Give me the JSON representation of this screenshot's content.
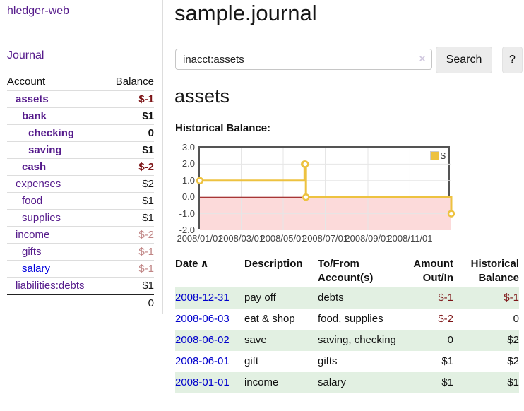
{
  "app": {
    "brand": "hledger-web"
  },
  "sidebar": {
    "journal_link": "Journal",
    "headers": {
      "account": "Account",
      "balance": "Balance"
    },
    "accounts": [
      {
        "name": "assets",
        "balance": "$-1",
        "depth": 1,
        "bold": true,
        "balance_class": "neg-dark",
        "link_class": "purple"
      },
      {
        "name": "bank",
        "balance": "$1",
        "depth": 2,
        "bold": true,
        "balance_class": "",
        "link_class": "purple"
      },
      {
        "name": "checking",
        "balance": "0",
        "depth": 3,
        "bold": true,
        "balance_class": "",
        "link_class": "purple"
      },
      {
        "name": "saving",
        "balance": "$1",
        "depth": 3,
        "bold": true,
        "balance_class": "",
        "link_class": "purple"
      },
      {
        "name": "cash",
        "balance": "$-2",
        "depth": 2,
        "bold": true,
        "balance_class": "neg-dark",
        "link_class": "purple"
      },
      {
        "name": "expenses",
        "balance": "$2",
        "depth": 1,
        "bold": false,
        "balance_class": "",
        "link_class": "purple"
      },
      {
        "name": "food",
        "balance": "$1",
        "depth": 2,
        "bold": false,
        "balance_class": "",
        "link_class": "purple"
      },
      {
        "name": "supplies",
        "balance": "$1",
        "depth": 2,
        "bold": false,
        "balance_class": "",
        "link_class": "purple"
      },
      {
        "name": "income",
        "balance": "$-2",
        "depth": 1,
        "bold": false,
        "balance_class": "neg-light",
        "link_class": "purple"
      },
      {
        "name": "gifts",
        "balance": "$-1",
        "depth": 2,
        "bold": false,
        "balance_class": "neg-light",
        "link_class": "purple"
      },
      {
        "name": "salary",
        "balance": "$-1",
        "depth": 2,
        "bold": false,
        "balance_class": "neg-light",
        "link_class": "blue"
      },
      {
        "name": "liabilities:debts",
        "balance": "$1",
        "depth": 1,
        "bold": false,
        "balance_class": "",
        "link_class": "purple"
      }
    ],
    "total": "0"
  },
  "main": {
    "title": "sample.journal",
    "search": {
      "value": "inacct:assets",
      "clear_icon": "×",
      "button_label": "Search",
      "help_label": "?"
    },
    "account_heading": "assets",
    "chart_heading": "Historical Balance:"
  },
  "chart_data": {
    "type": "line",
    "line_style": "steps",
    "title": "Historical Balance:",
    "series": [
      {
        "name": "$",
        "color": "#edc240",
        "points": [
          [
            "2008-01-01",
            1
          ],
          [
            "2008-06-01",
            2
          ],
          [
            "2008-06-02",
            2
          ],
          [
            "2008-06-03",
            0
          ],
          [
            "2008-12-31",
            -1
          ]
        ]
      }
    ],
    "x_start": "2008-01-01",
    "x_span_days": 365,
    "x_ticks": [
      "2008/01/01",
      "2008/03/01",
      "2008/05/01",
      "2008/07/01",
      "2008/09/01",
      "2008/11/01"
    ],
    "y_ticks": [
      "3.0",
      "2.0",
      "1.0",
      "0.0",
      "-1.0",
      "-2.0"
    ],
    "ylim": [
      -2,
      3
    ],
    "grid": true,
    "legend_position": "top-right",
    "negative_region_color": "#fcdada",
    "zero_line_color": "#8b0000",
    "grid_color": "#e6e6e6"
  },
  "register": {
    "headers": {
      "date": "Date",
      "sort_icon": "∧",
      "description": "Description",
      "accounts": "To/From Account(s)",
      "amount": "Amount Out/In",
      "balance": "Historical Balance"
    },
    "rows": [
      {
        "date": "2008-12-31",
        "description": "pay off",
        "accounts": "debts",
        "amount": "$-1",
        "balance": "$-1",
        "amount_negative": true,
        "balance_negative": true,
        "shaded": true
      },
      {
        "date": "2008-06-03",
        "description": "eat & shop",
        "accounts": "food, supplies",
        "amount": "$-2",
        "balance": "0",
        "amount_negative": true,
        "balance_negative": false,
        "shaded": false
      },
      {
        "date": "2008-06-02",
        "description": "save",
        "accounts": "saving, checking",
        "amount": "0",
        "balance": "$2",
        "amount_negative": false,
        "balance_negative": false,
        "shaded": true
      },
      {
        "date": "2008-06-01",
        "description": "gift",
        "accounts": "gifts",
        "amount": "$1",
        "balance": "$2",
        "amount_negative": false,
        "balance_negative": false,
        "shaded": false
      },
      {
        "date": "2008-01-01",
        "description": "income",
        "accounts": "salary",
        "amount": "$1",
        "balance": "$1",
        "amount_negative": false,
        "balance_negative": false,
        "shaded": true
      }
    ]
  }
}
